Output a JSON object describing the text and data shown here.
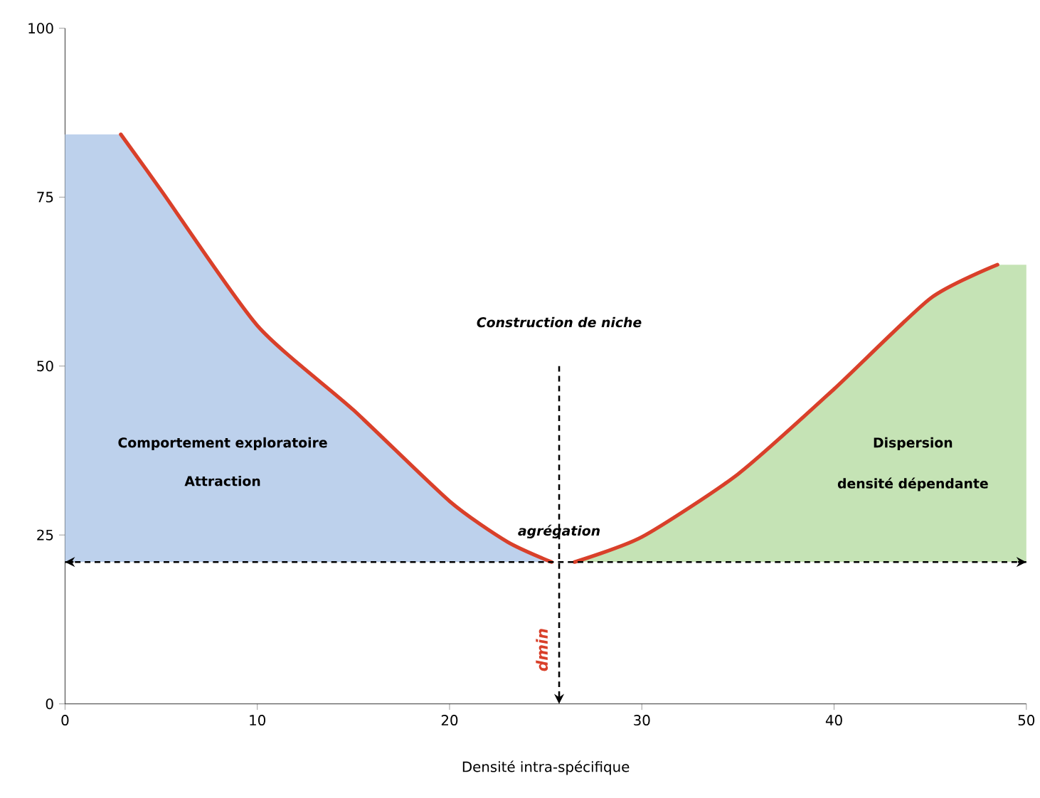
{
  "chart_data": {
    "type": "line",
    "xlabel": "Densité intra-spécifique",
    "xlim": [
      0,
      50
    ],
    "ylim": [
      0,
      100
    ],
    "xticks": [
      0,
      10,
      20,
      30,
      40,
      50
    ],
    "yticks": [
      0,
      25,
      50,
      75,
      100
    ],
    "series": [
      {
        "type": "area",
        "color": "#bdd1ec",
        "x": [
          0,
          2.9,
          5,
          10,
          15,
          20,
          23,
          25.3
        ],
        "values": [
          84.3,
          84.3,
          76,
          56,
          43.5,
          30,
          24,
          21
        ]
      },
      {
        "type": "area",
        "color": "#c5e3b5",
        "x": [
          26.5,
          30,
          35,
          40,
          45,
          48.5,
          50,
          50
        ],
        "values": [
          21,
          24.7,
          34,
          46.6,
          60,
          65,
          65,
          21
        ]
      },
      {
        "color": "#d9402a",
        "x": [
          2.9,
          5,
          10,
          15,
          20,
          23,
          25.3
        ],
        "values": [
          84.3,
          76,
          56,
          43.5,
          30,
          24,
          21
        ]
      },
      {
        "color": "#d9402a",
        "x": [
          26.5,
          30,
          35,
          40,
          45,
          48.5
        ],
        "values": [
          21,
          24.7,
          34,
          46.6,
          60,
          65
        ]
      }
    ],
    "ref_lines": [
      {
        "axis": "y",
        "value": 21,
        "color": "#000000",
        "line_style": "dashed"
      }
    ],
    "annotations": [
      "Construction de niche",
      "agrégation",
      "Comportement exploratoire",
      "Attraction",
      "Dispersion",
      "densité dépendante",
      "dmin"
    ]
  }
}
